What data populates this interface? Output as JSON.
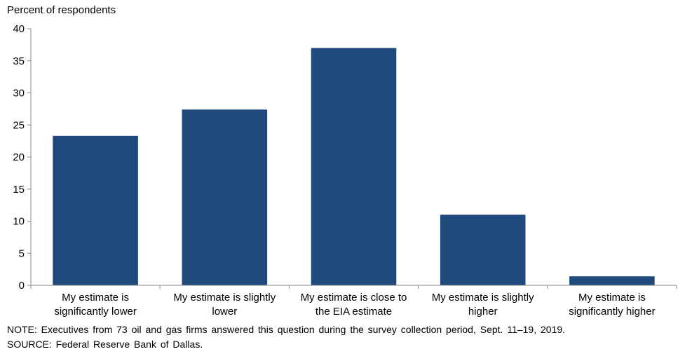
{
  "chart_data": {
    "type": "bar",
    "ylabel": "Percent of respondents",
    "ylim": [
      0,
      40
    ],
    "yticks": [
      0,
      5,
      10,
      15,
      20,
      25,
      30,
      35,
      40
    ],
    "categories": [
      [
        "My estimate is",
        "significantly lower"
      ],
      [
        "My estimate is slightly",
        "lower"
      ],
      [
        "My estimate is close to",
        "the EIA estimate"
      ],
      [
        "My estimate is slightly",
        "higher"
      ],
      [
        "My estimate is",
        "significantly higher"
      ]
    ],
    "values": [
      23.3,
      27.4,
      37.0,
      11.0,
      1.4
    ],
    "bar_color": "#204a7d",
    "grid": false,
    "legend": "none"
  },
  "notes": {
    "note": "NOTE: Executives from 73 oil and gas firms answered this question during the survey collection period, Sept. 11–19, 2019.",
    "source": "SOURCE: Federal Reserve Bank of Dallas."
  }
}
